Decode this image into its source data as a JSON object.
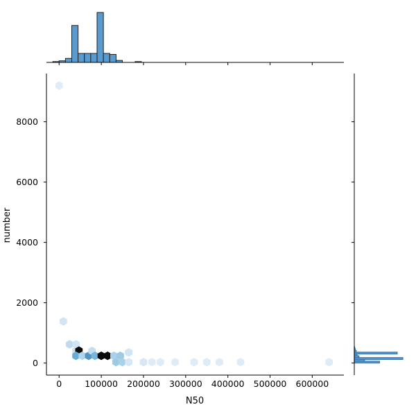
{
  "chart_data": {
    "type": "hexbin",
    "kind": "jointplot",
    "xlabel": "N50",
    "ylabel": "number",
    "xlim": [
      -30000,
      675000
    ],
    "ylim": [
      -400,
      9600
    ],
    "x_ticks": [
      0,
      100000,
      200000,
      300000,
      400000,
      500000,
      600000
    ],
    "x_tick_labels": [
      "0",
      "100000",
      "200000",
      "300000",
      "400000",
      "500000",
      "600000"
    ],
    "y_ticks": [
      0,
      2000,
      4000,
      6000,
      8000
    ],
    "y_tick_labels": [
      "0",
      "2000",
      "4000",
      "6000",
      "8000"
    ],
    "hexbins": [
      {
        "x": 0,
        "y": 9200,
        "level": 0.05
      },
      {
        "x": 10000,
        "y": 1380,
        "level": 0.1
      },
      {
        "x": 25000,
        "y": 620,
        "level": 0.18
      },
      {
        "x": 40000,
        "y": 620,
        "level": 0.1
      },
      {
        "x": 40000,
        "y": 410,
        "level": 0.12
      },
      {
        "x": 47000,
        "y": 410,
        "level": 1.0
      },
      {
        "x": 40000,
        "y": 240,
        "level": 0.5
      },
      {
        "x": 55000,
        "y": 240,
        "level": 0.22
      },
      {
        "x": 70000,
        "y": 240,
        "level": 0.6
      },
      {
        "x": 78000,
        "y": 400,
        "level": 0.15
      },
      {
        "x": 85000,
        "y": 240,
        "level": 0.45
      },
      {
        "x": 100000,
        "y": 240,
        "level": 1.0
      },
      {
        "x": 115000,
        "y": 240,
        "level": 1.0
      },
      {
        "x": 130000,
        "y": 240,
        "level": 0.25
      },
      {
        "x": 145000,
        "y": 240,
        "level": 0.3
      },
      {
        "x": 135000,
        "y": 30,
        "level": 0.3
      },
      {
        "x": 150000,
        "y": 30,
        "level": 0.25
      },
      {
        "x": 165000,
        "y": 350,
        "level": 0.1
      },
      {
        "x": 165000,
        "y": 30,
        "level": 0.08
      },
      {
        "x": 200000,
        "y": 30,
        "level": 0.08
      },
      {
        "x": 220000,
        "y": 30,
        "level": 0.05
      },
      {
        "x": 240000,
        "y": 30,
        "level": 0.05
      },
      {
        "x": 275000,
        "y": 30,
        "level": 0.05
      },
      {
        "x": 320000,
        "y": 30,
        "level": 0.05
      },
      {
        "x": 350000,
        "y": 30,
        "level": 0.05
      },
      {
        "x": 380000,
        "y": 30,
        "level": 0.05
      },
      {
        "x": 430000,
        "y": 30,
        "level": 0.05
      },
      {
        "x": 640000,
        "y": 30,
        "level": 0.05
      }
    ],
    "marginal_x_histogram": {
      "bin_edges": [
        -15000,
        0,
        15000,
        30000,
        45000,
        60000,
        75000,
        90000,
        105000,
        120000,
        135000,
        150000,
        165000,
        180000,
        195000,
        210000
      ],
      "counts": [
        3,
        8,
        20,
        185,
        45,
        45,
        45,
        250,
        45,
        40,
        10,
        0,
        0,
        1,
        0
      ]
    },
    "marginal_y_histogram": {
      "bin_edges": [
        0,
        60,
        120,
        180,
        240,
        300,
        360,
        420,
        480,
        540
      ],
      "counts": [
        135,
        55,
        260,
        25,
        15,
        230,
        10,
        5,
        2
      ]
    },
    "colors": {
      "hex_low": "#ebf3fb",
      "hex_mid": "#6aaed6",
      "hex_high": "#08306b",
      "hex_max": "#0a0a0a",
      "histogram_fill": "#5a9bcf",
      "histogram_edge": "#1f1f1f",
      "marginal_y_line": "#3b78b0"
    }
  }
}
